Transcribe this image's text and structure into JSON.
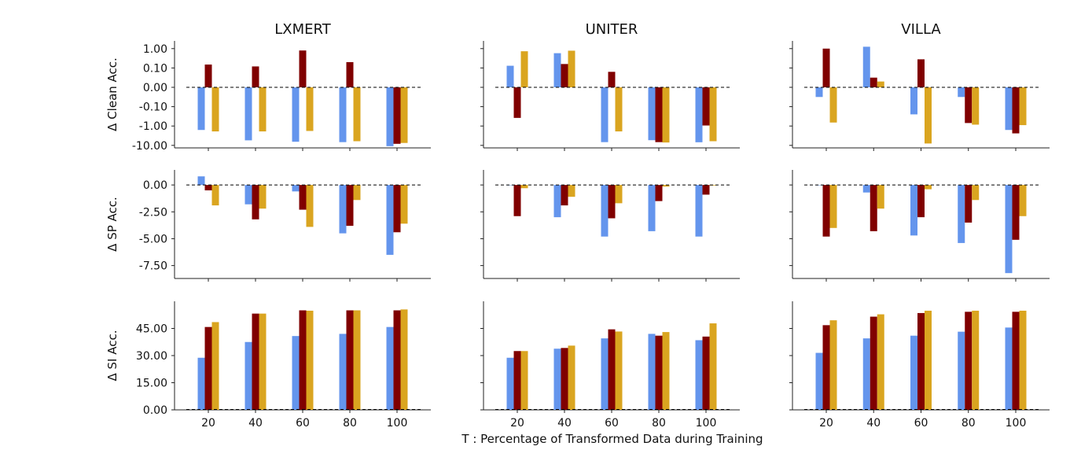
{
  "figure": {
    "xlabel": "T : Percentage of Transformed Data during Training",
    "colors": [
      "#6495ED",
      "#800000",
      "#DAA520"
    ]
  },
  "chart_data": {
    "type": "bar",
    "categories": [
      "20",
      "40",
      "60",
      "80",
      "100"
    ],
    "columns": [
      "LXMERT",
      "UNITER",
      "VILLA"
    ],
    "rows": [
      {
        "ylabel": "Δ Clean Acc.",
        "scale": "symlog",
        "yticks": [
          "1.00",
          "0.10",
          "0.00",
          "-0.10",
          "-1.00",
          "-10.00"
        ],
        "panels": [
          [
            [
              -1.6,
              0.15,
              -1.9
            ],
            [
              -5.5,
              0.12,
              -1.9
            ],
            [
              -6.5,
              0.8,
              -1.8
            ],
            [
              -6.8,
              0.2,
              -6.1
            ],
            [
              -11.0,
              -8.3,
              -7.5
            ]
          ],
          [
            [
              0.13,
              -0.38,
              0.73
            ],
            [
              0.58,
              0.16,
              0.78
            ],
            [
              -6.8,
              0.08,
              -1.9
            ],
            [
              -5.4,
              -6.8,
              -7.1
            ],
            [
              -6.9,
              -0.94,
              -6.1
            ]
          ],
          [
            [
              -0.05,
              1.0,
              -0.66
            ],
            [
              1.25,
              0.05,
              0.03
            ],
            [
              -0.25,
              0.28,
              -8.0
            ],
            [
              -0.05,
              -0.7,
              -0.85
            ],
            [
              -1.6,
              -2.4,
              -0.9
            ]
          ]
        ]
      },
      {
        "ylabel": "Δ SP Acc.",
        "scale": "linear",
        "ylim": [
          -8.7,
          1.4
        ],
        "yticks": [
          "0.00",
          "-2.50",
          "-5.00",
          "-7.50"
        ],
        "panels": [
          [
            [
              0.8,
              -0.5,
              -1.9
            ],
            [
              -1.8,
              -3.2,
              -2.2
            ],
            [
              -0.6,
              -2.3,
              -3.9
            ],
            [
              -4.5,
              -3.8,
              -1.4
            ],
            [
              -6.5,
              -4.4,
              -3.6
            ]
          ],
          [
            [
              0.0,
              -2.9,
              -0.3
            ],
            [
              -3.0,
              -1.9,
              -1.1
            ],
            [
              -4.8,
              -3.1,
              -1.7
            ],
            [
              -4.3,
              -1.5,
              -0.15
            ],
            [
              -4.8,
              -0.9,
              -0.05
            ]
          ],
          [
            [
              0.0,
              -4.8,
              -4.0
            ],
            [
              -0.7,
              -4.3,
              -2.2
            ],
            [
              -4.7,
              -3.0,
              -0.4
            ],
            [
              -5.4,
              -3.5,
              -1.4
            ],
            [
              -8.2,
              -5.1,
              -2.9
            ]
          ]
        ]
      },
      {
        "ylabel": "Δ SI Acc.",
        "scale": "linear",
        "ylim": [
          0,
          60
        ],
        "yticks": [
          "0.00",
          "15.00",
          "30.00",
          "45.00"
        ],
        "panels": [
          [
            [
              28.8,
              45.8,
              48.5
            ],
            [
              37.5,
              53.2,
              53.2
            ],
            [
              40.8,
              55.0,
              54.8
            ],
            [
              42.0,
              55.0,
              55.0
            ],
            [
              45.8,
              55.0,
              55.5
            ]
          ],
          [
            [
              28.8,
              32.5,
              32.5
            ],
            [
              33.8,
              34.2,
              35.5
            ],
            [
              39.5,
              44.5,
              43.3
            ],
            [
              42.0,
              41.0,
              43.0
            ],
            [
              38.5,
              40.5,
              47.8
            ]
          ],
          [
            [
              31.5,
              46.8,
              49.5
            ],
            [
              39.5,
              51.5,
              52.8
            ],
            [
              41.0,
              53.5,
              54.8
            ],
            [
              43.2,
              54.2,
              54.8
            ],
            [
              45.5,
              54.2,
              54.8
            ]
          ]
        ]
      }
    ],
    "ticks_x": [
      "20",
      "40",
      "60",
      "80",
      "100"
    ]
  }
}
